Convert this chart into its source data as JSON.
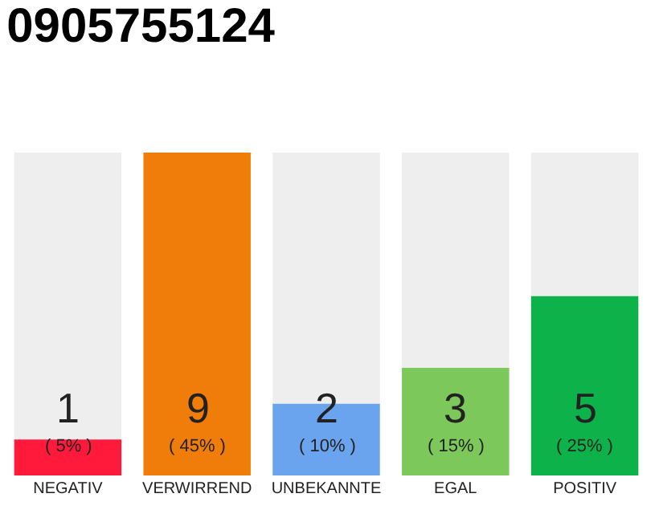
{
  "chart_data": {
    "type": "bar",
    "title": "0905755124",
    "categories": [
      "NEGATIV",
      "VERWIRREND",
      "UNBEKANNTE",
      "EGAL",
      "POSITIV"
    ],
    "values": [
      1,
      9,
      2,
      3,
      5
    ],
    "colors": [
      "#ff1a3c",
      "#f07d0a",
      "#6aa3ee",
      "#7dc85a",
      "#0db34a"
    ],
    "data_labels": true,
    "annotations": [
      "( 5% )",
      "( 45% )",
      "( 10% )",
      "( 15% )",
      "( 25% )"
    ],
    "grid": false,
    "legend": false
  }
}
